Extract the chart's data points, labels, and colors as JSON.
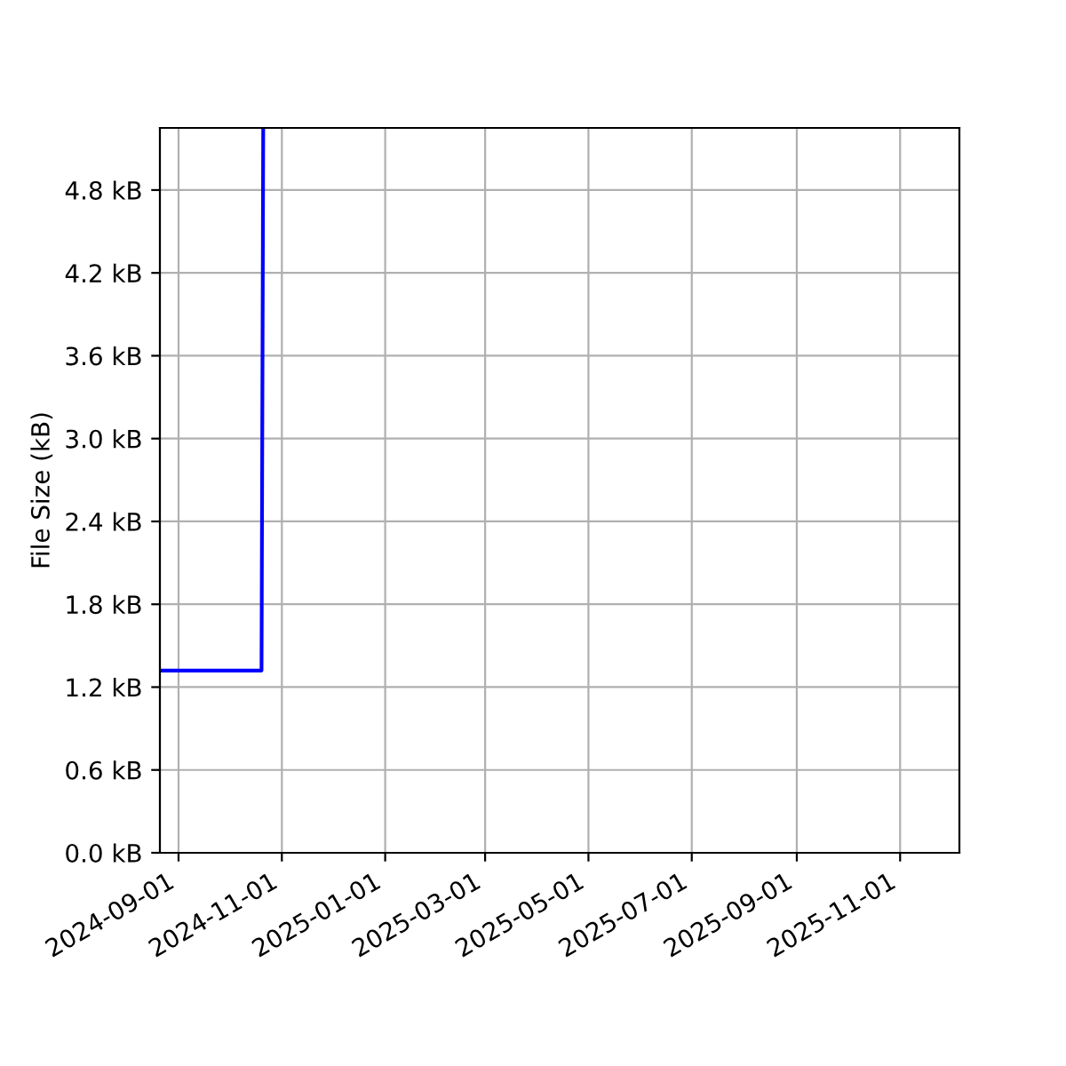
{
  "chart_data": {
    "type": "line",
    "ylabel": "File Size (kB)",
    "x": [
      "2024-08-21",
      "2024-10-20",
      "2024-10-21"
    ],
    "series": [
      {
        "color": "#0000ff",
        "values": [
          1.32,
          1.32,
          5.25
        ]
      }
    ],
    "xlim": [
      "2024-08-21",
      "2025-12-06"
    ],
    "xticks": [
      {
        "value": "2024-09-01",
        "label": "2024-09-01"
      },
      {
        "value": "2024-11-01",
        "label": "2024-11-01"
      },
      {
        "value": "2025-01-01",
        "label": "2025-01-01"
      },
      {
        "value": "2025-03-01",
        "label": "2025-03-01"
      },
      {
        "value": "2025-05-01",
        "label": "2025-05-01"
      },
      {
        "value": "2025-07-01",
        "label": "2025-07-01"
      },
      {
        "value": "2025-09-01",
        "label": "2025-09-01"
      },
      {
        "value": "2025-11-01",
        "label": "2025-11-01"
      }
    ],
    "ylim": [
      0,
      5.25
    ],
    "yticks": [
      {
        "value": 0,
        "label": "0.0 kB"
      },
      {
        "value": 0.6,
        "label": "0.6 kB"
      },
      {
        "value": 1.2,
        "label": "1.2 kB"
      },
      {
        "value": 1.8,
        "label": "1.8 kB"
      },
      {
        "value": 2.4,
        "label": "2.4 kB"
      },
      {
        "value": 3.0,
        "label": "3.0 kB"
      },
      {
        "value": 3.6,
        "label": "3.6 kB"
      },
      {
        "value": 4.2,
        "label": "4.2 kB"
      },
      {
        "value": 4.8,
        "label": "4.8 kB"
      }
    ],
    "grid": true,
    "marker": "none",
    "line_style": "solid"
  }
}
